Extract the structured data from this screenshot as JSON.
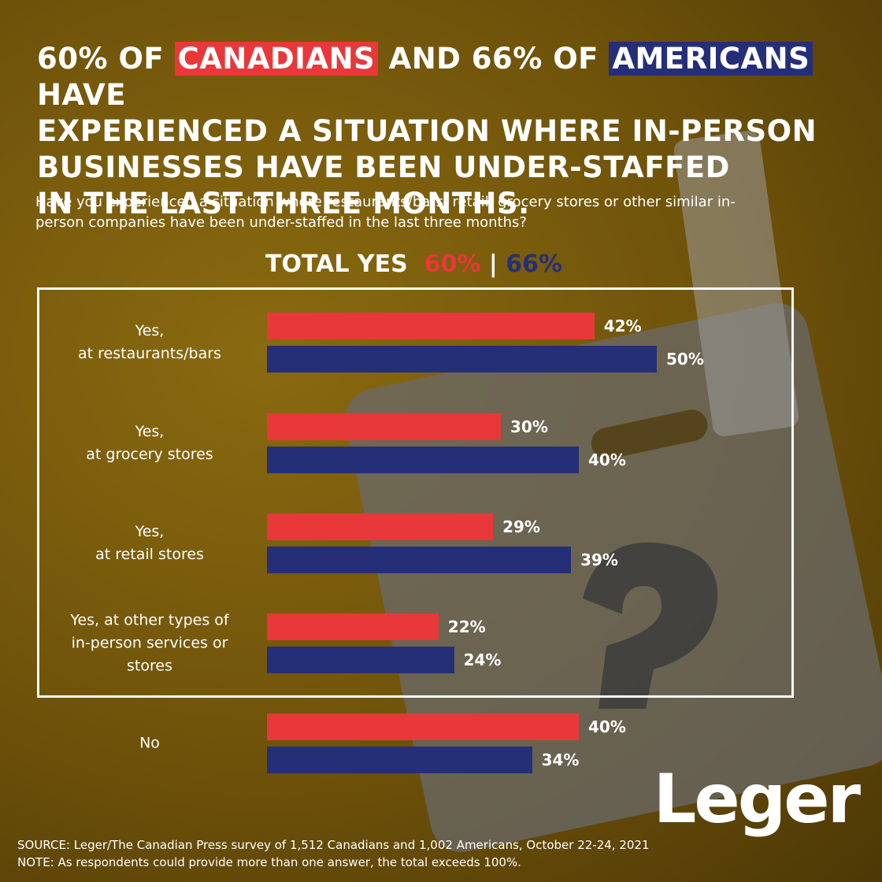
{
  "chart_data": {
    "type": "bar",
    "orientation": "horizontal",
    "title_parts": [
      "60% OF",
      "AND 66% OF",
      "HAVE\nEXPERIENCED A SITUATION WHERE IN-PERSON\nBUSINESSES HAVE BEEN UNDER-STAFFED\nIN THE LAST THREE MONTHS."
    ],
    "subtitle": "Have you experienced a situation where restaurants/bars, retail, grocery stores or other similar in-person companies have been under-staffed in the last three months?",
    "total_yes": {
      "label": "TOTAL YES",
      "first": "60%",
      "separator": "|",
      "second": "66%"
    },
    "categories": [
      "Yes,\nat restaurants/bars",
      "Yes,\nat grocery stores",
      "Yes,\nat retail stores",
      "Yes, at other types of\nin-person services or\nstores",
      "No"
    ],
    "series": [
      {
        "name": "CANADIANS",
        "color": "#e8383a",
        "values": [
          42,
          30,
          29,
          22,
          40
        ],
        "value_labels": [
          "42%",
          "30%",
          "29%",
          "22%",
          "40%"
        ]
      },
      {
        "name": "AMERICANS",
        "color": "#252f78",
        "values": [
          50,
          40,
          39,
          24,
          34
        ],
        "value_labels": [
          "50%",
          "40%",
          "39%",
          "24%",
          "34%"
        ]
      }
    ],
    "source": "SOURCE: Leger/The Canadian Press survey of 1,512 Canadians and 1,002 Americans, October 22-24, 2021",
    "note": "NOTE: As respondents could provide more than one answer, the total exceeds 100%.",
    "logo": "Leger"
  }
}
